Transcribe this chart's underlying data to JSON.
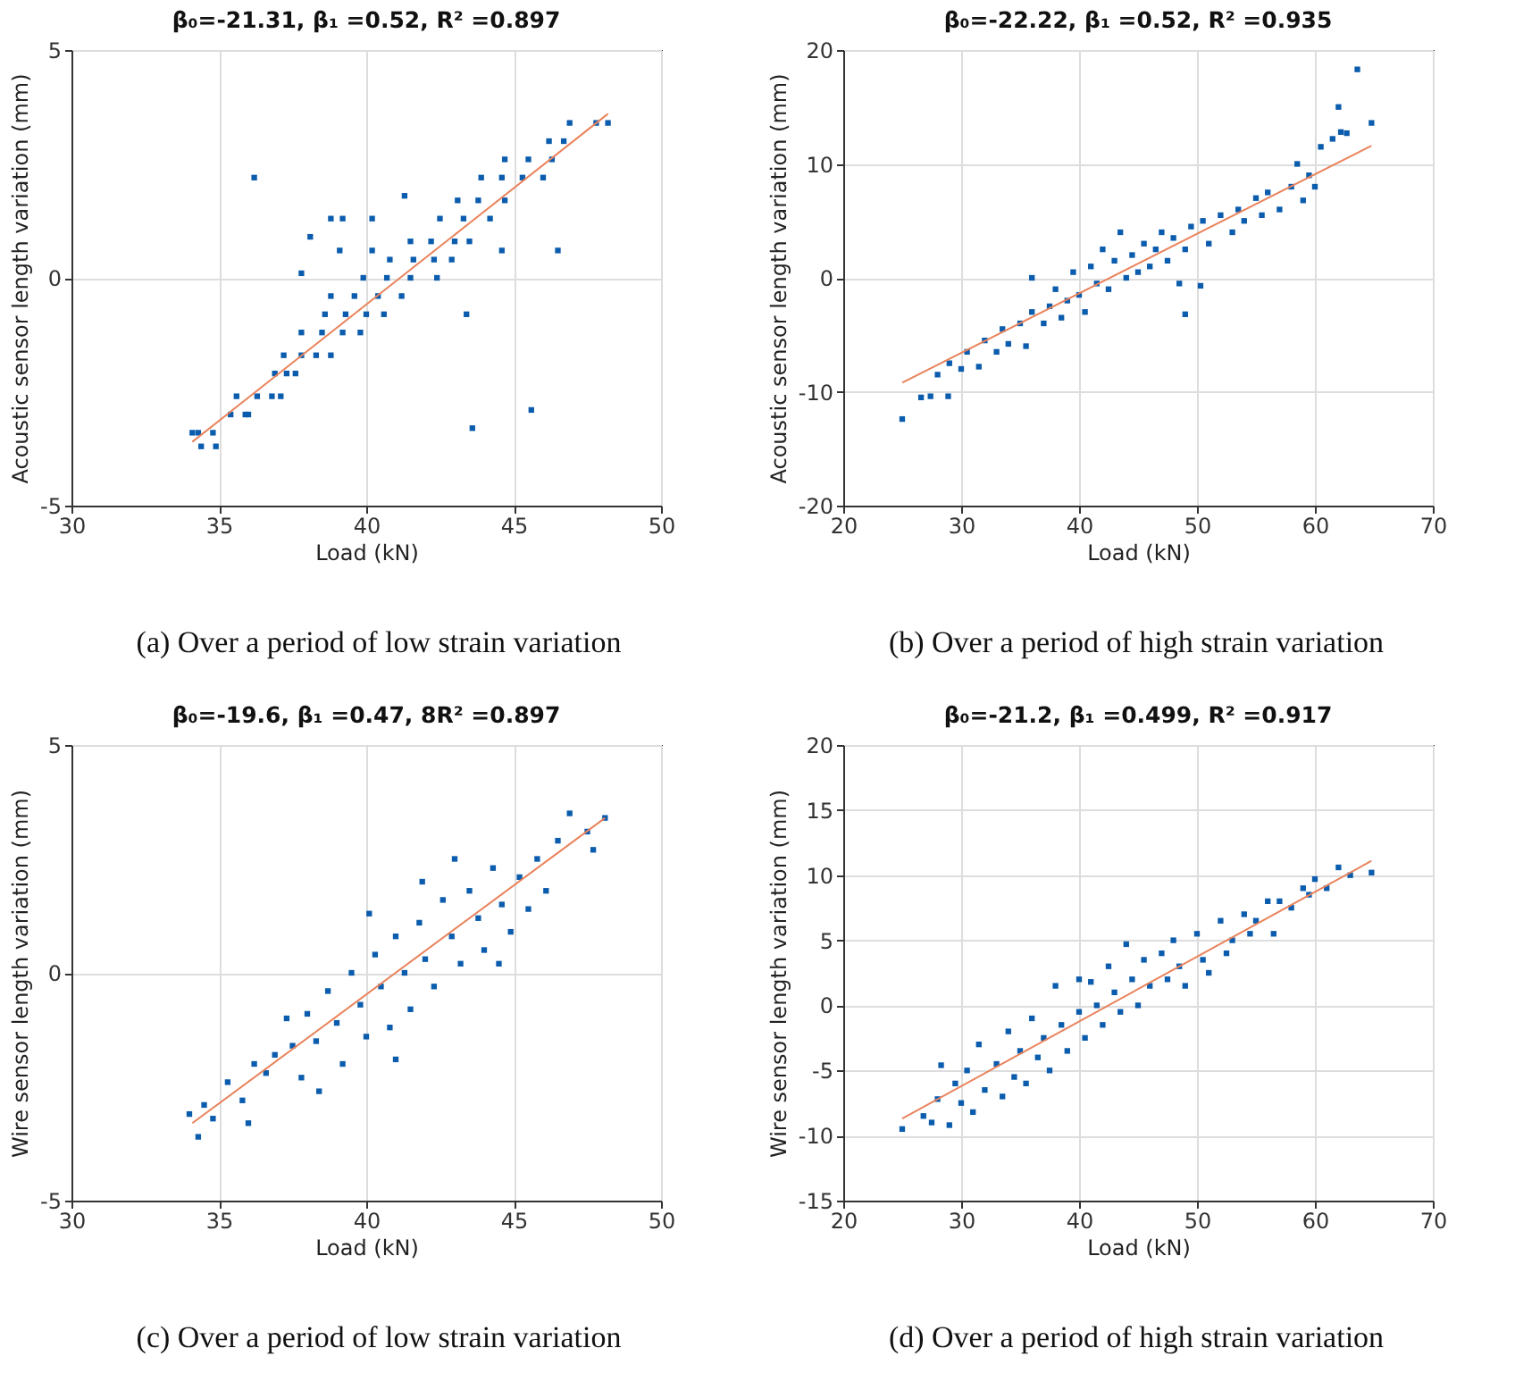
{
  "chart_data": [
    {
      "type": "scatter",
      "title": "β₀=-21.31, β₁ =0.52, R² =0.897",
      "xlabel": "Load (kN)",
      "ylabel": "Acoustic sensor length variation (mm)",
      "xlim": [
        30,
        50
      ],
      "xticks": [
        30,
        35,
        40,
        45,
        50
      ],
      "ylim": [
        -5,
        5
      ],
      "yticks": [
        -5,
        0,
        5
      ],
      "grid": true,
      "annotations": [
        "(a) Over a period of low strain variation"
      ],
      "series": [
        {
          "type": "scatter",
          "marker": "square",
          "color": "#0b5cad",
          "x": [
            34.1,
            34.3,
            34.8,
            34.4,
            34.9,
            35.4,
            35.9,
            36.0,
            35.6,
            36.3,
            36.8,
            37.1,
            36.9,
            37.3,
            37.6,
            37.2,
            37.8,
            38.3,
            38.8,
            37.8,
            38.5,
            39.2,
            39.8,
            38.6,
            39.3,
            40.0,
            40.6,
            38.8,
            39.6,
            40.4,
            41.2,
            39.9,
            40.7,
            41.5,
            42.4,
            40.8,
            41.6,
            42.3,
            42.9,
            41.5,
            42.2,
            43.0,
            43.5,
            42.5,
            43.3,
            44.2,
            43.1,
            43.8,
            44.7,
            43.9,
            44.6,
            45.3,
            46.0,
            44.7,
            45.5,
            46.3,
            46.2,
            46.7,
            46.9,
            47.8,
            48.2,
            36.2,
            38.8,
            39.2,
            40.2,
            41.3,
            38.1,
            39.1,
            40.2,
            37.8,
            43.4,
            43.6,
            45.6,
            44.6,
            46.5
          ],
          "values": [
            -3.4,
            -3.4,
            -3.4,
            -3.7,
            -3.7,
            -3.0,
            -3.0,
            -3.0,
            -2.6,
            -2.6,
            -2.6,
            -2.6,
            -2.1,
            -2.1,
            -2.1,
            -1.7,
            -1.7,
            -1.7,
            -1.7,
            -1.2,
            -1.2,
            -1.2,
            -1.2,
            -0.8,
            -0.8,
            -0.8,
            -0.8,
            -0.4,
            -0.4,
            -0.4,
            -0.4,
            0,
            0,
            0,
            0,
            0.4,
            0.4,
            0.4,
            0.4,
            0.8,
            0.8,
            0.8,
            0.8,
            1.3,
            1.3,
            1.3,
            1.7,
            1.7,
            1.7,
            2.2,
            2.2,
            2.2,
            2.2,
            2.6,
            2.6,
            2.6,
            3.0,
            3.0,
            3.4,
            3.4,
            3.4,
            2.2,
            1.3,
            1.3,
            1.3,
            1.8,
            0.9,
            0.6,
            0.6,
            0.1,
            -0.8,
            -3.3,
            -2.9,
            0.6,
            0.6
          ]
        },
        {
          "type": "line",
          "color": "#e9835c",
          "x": [
            34.1,
            48.2
          ],
          "values": [
            -3.6,
            3.6
          ]
        }
      ]
    },
    {
      "type": "scatter",
      "title": "β₀=-22.22, β₁ =0.52, R² =0.935",
      "xlabel": "Load (kN)",
      "ylabel": "Acoustic sensor length variation (mm)",
      "xlim": [
        20,
        70
      ],
      "xticks": [
        20,
        30,
        40,
        50,
        60,
        70
      ],
      "ylim": [
        -20,
        20
      ],
      "yticks": [
        -20,
        -10,
        0,
        10,
        20
      ],
      "grid": true,
      "annotations": [
        "(b) Over a period of high strain variation"
      ],
      "series": [
        {
          "type": "scatter",
          "marker": "square",
          "color": "#0b5cad",
          "x": [
            25,
            26.6,
            27.4,
            28.9,
            28,
            29,
            30,
            30.5,
            31.5,
            32,
            33,
            33.5,
            34,
            35,
            35.5,
            36,
            36,
            37,
            37.5,
            38,
            38.5,
            39,
            39.5,
            40,
            40.5,
            41,
            41.5,
            42,
            42.5,
            43,
            43.5,
            44,
            44.5,
            45,
            45.5,
            46,
            46.5,
            47,
            47.5,
            48,
            48.5,
            49,
            49,
            49.5,
            50.3,
            50.5,
            51,
            52,
            53,
            53.5,
            54,
            55,
            55.5,
            56,
            57,
            58,
            58.5,
            59,
            59.5,
            60,
            60.5,
            61.5,
            62,
            62.2,
            62.7,
            63.6,
            64.8
          ],
          "values": [
            -12.4,
            -10.5,
            -10.4,
            -10.4,
            -8.5,
            -7.5,
            -8,
            -6.5,
            -7.8,
            -5.5,
            -6.5,
            -4.5,
            -5.8,
            -4,
            -6,
            -3,
            0,
            -4,
            -2.5,
            -1,
            -3.5,
            -2,
            0.5,
            -1.5,
            -3,
            1,
            -0.5,
            2.5,
            -1,
            1.5,
            4,
            0,
            2,
            0.5,
            3,
            1,
            2.5,
            4,
            1.5,
            3.5,
            -0.5,
            -3.2,
            2.5,
            4.5,
            -0.7,
            5,
            3,
            5.5,
            4,
            6,
            5,
            7,
            5.5,
            7.5,
            6,
            8,
            10,
            6.8,
            9,
            8,
            11.5,
            12.2,
            15,
            12.8,
            12.7,
            18.3,
            13.6
          ]
        },
        {
          "type": "line",
          "color": "#e9835c",
          "x": [
            25,
            64.8
          ],
          "values": [
            -9.2,
            11.6
          ]
        }
      ]
    },
    {
      "type": "scatter",
      "title": "β₀=-19.6, β₁ =0.47, 8R² =0.897",
      "xlabel": "Load (kN)",
      "ylabel": "Wire sensor length variation (mm)",
      "xlim": [
        30,
        50
      ],
      "xticks": [
        30,
        35,
        40,
        45,
        50
      ],
      "ylim": [
        -5,
        5
      ],
      "yticks": [
        -5,
        0,
        5
      ],
      "grid": true,
      "annotations": [
        "(c) Over a period of low strain variation"
      ],
      "series": [
        {
          "type": "scatter",
          "marker": "square",
          "color": "#0b5cad",
          "x": [
            34,
            34.3,
            34.5,
            34.8,
            35.3,
            35.8,
            36,
            36.2,
            36.6,
            36.9,
            37.3,
            37.5,
            37.8,
            38,
            38.3,
            38.7,
            39,
            39.2,
            39.5,
            39.8,
            40,
            40.3,
            40.5,
            40.8,
            41,
            41.3,
            41.5,
            41.8,
            42,
            42.3,
            42.6,
            42.9,
            43.2,
            43.5,
            43.8,
            44,
            44.3,
            44.6,
            44.9,
            45.2,
            45.5,
            45.8,
            46.1,
            46.5,
            46.9,
            47.5,
            47.7,
            48.1,
            40.1,
            41.9,
            41,
            43,
            44.5,
            38.4
          ],
          "values": [
            -3.1,
            -3.6,
            -2.9,
            -3.2,
            -2.4,
            -2.8,
            -3.3,
            -2.0,
            -2.2,
            -1.8,
            -1.0,
            -1.6,
            -2.3,
            -0.9,
            -1.5,
            -0.4,
            -1.1,
            -2.0,
            0,
            -0.7,
            -1.4,
            0.4,
            -0.3,
            -1.2,
            0.8,
            0,
            -0.8,
            1.1,
            0.3,
            -0.3,
            1.6,
            0.8,
            0.2,
            1.8,
            1.2,
            0.5,
            2.3,
            1.5,
            0.9,
            2.1,
            1.4,
            2.5,
            1.8,
            2.9,
            3.5,
            3.1,
            2.7,
            3.4,
            1.3,
            2.0,
            -1.9,
            2.5,
            0.2,
            -2.6
          ]
        },
        {
          "type": "line",
          "color": "#e9835c",
          "x": [
            34.1,
            48.1
          ],
          "values": [
            -3.3,
            3.4
          ]
        }
      ]
    },
    {
      "type": "scatter",
      "title": "β₀=-21.2, β₁ =0.499, R² =0.917",
      "xlabel": "Load (kN)",
      "ylabel": "Wire sensor length variation (mm)",
      "xlim": [
        20,
        70
      ],
      "xticks": [
        20,
        30,
        40,
        50,
        60,
        70
      ],
      "ylim": [
        -15,
        20
      ],
      "yticks": [
        -15,
        -10,
        -5,
        0,
        5,
        10,
        15,
        20
      ],
      "grid": true,
      "annotations": [
        "(d) Over a period of high strain variation"
      ],
      "series": [
        {
          "type": "scatter",
          "marker": "square",
          "color": "#0b5cad",
          "x": [
            25,
            26.8,
            27.5,
            28,
            28.3,
            29,
            29.5,
            30,
            30.5,
            31,
            31.5,
            32,
            33,
            33.5,
            34,
            34.5,
            35,
            35.5,
            36,
            36.5,
            37,
            37.5,
            38,
            38.5,
            39,
            40,
            40,
            40.5,
            41,
            41.5,
            42,
            42.5,
            43,
            43.5,
            44,
            44.5,
            45,
            45.5,
            46,
            47,
            47.5,
            48,
            48.5,
            49,
            50,
            50.5,
            51,
            52,
            52.5,
            53,
            54,
            54.5,
            55,
            56,
            56.5,
            57,
            58,
            59,
            59.5,
            60,
            61,
            62,
            63,
            64.8
          ],
          "values": [
            -9.5,
            -8.5,
            -9,
            -7.2,
            -4.6,
            -9.2,
            -6,
            -7.5,
            -5,
            -8.2,
            -3,
            -6.5,
            -4.5,
            -7,
            -2,
            -5.5,
            -3.5,
            -6,
            -1,
            -4,
            -2.5,
            -5,
            1.5,
            -1.5,
            -3.5,
            2,
            -0.5,
            -2.5,
            1.8,
            0,
            -1.5,
            3,
            1,
            -0.5,
            4.7,
            2,
            0,
            3.5,
            1.5,
            4,
            2,
            5,
            3,
            1.5,
            5.5,
            3.5,
            2.5,
            6.5,
            4,
            5,
            7,
            5.5,
            6.5,
            8,
            5.5,
            8,
            7.5,
            9,
            8.5,
            9.7,
            9,
            10.6,
            10,
            10.2
          ]
        },
        {
          "type": "line",
          "color": "#e9835c",
          "x": [
            25,
            64.8
          ],
          "values": [
            -8.7,
            11.1
          ]
        }
      ]
    }
  ]
}
